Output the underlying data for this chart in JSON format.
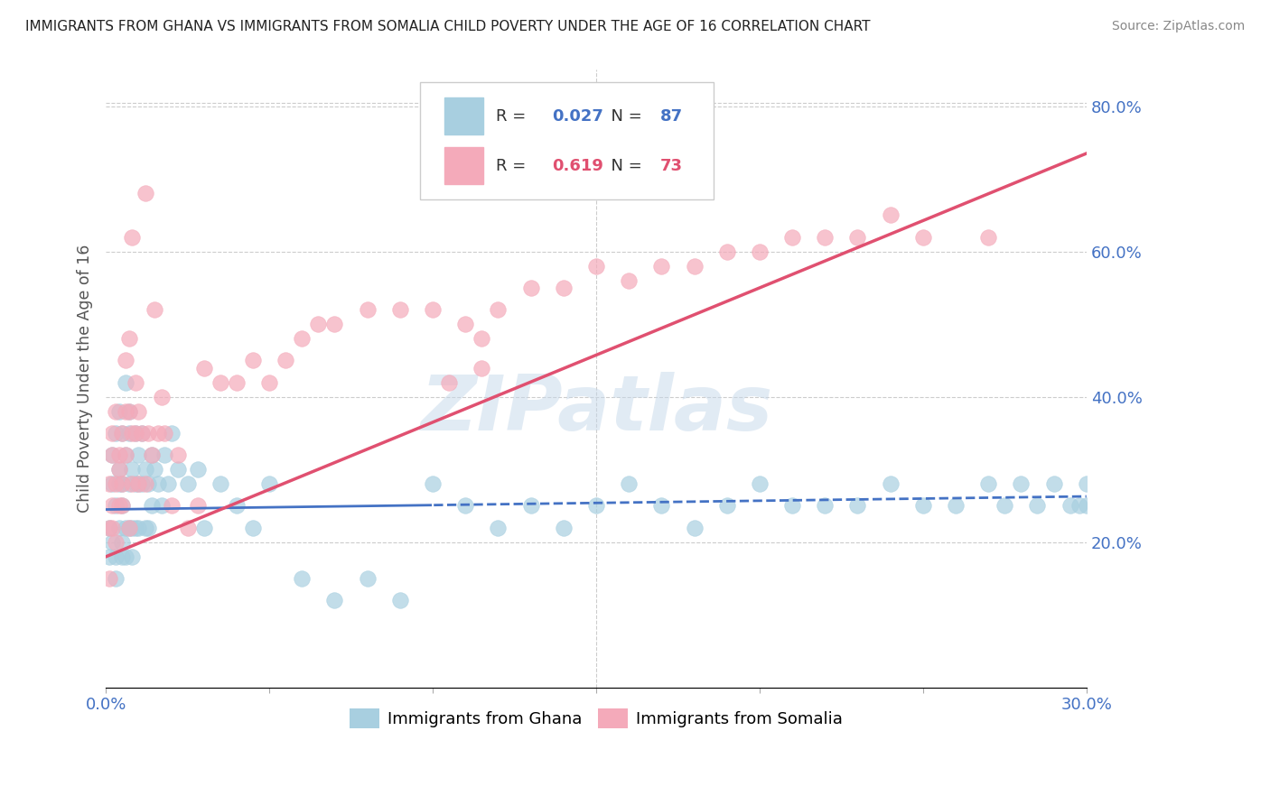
{
  "title": "IMMIGRANTS FROM GHANA VS IMMIGRANTS FROM SOMALIA CHILD POVERTY UNDER THE AGE OF 16 CORRELATION CHART",
  "source": "Source: ZipAtlas.com",
  "ylabel": "Child Poverty Under the Age of 16",
  "xmin": 0.0,
  "xmax": 0.3,
  "ymin": 0.0,
  "ymax": 0.85,
  "yticks": [
    0.2,
    0.4,
    0.6,
    0.8
  ],
  "ytick_labels": [
    "20.0%",
    "40.0%",
    "60.0%",
    "80.0%"
  ],
  "xticks": [
    0.0,
    0.05,
    0.1,
    0.15,
    0.2,
    0.25,
    0.3
  ],
  "xtick_labels": [
    "0.0%",
    "",
    "",
    "",
    "",
    "",
    "30.0%"
  ],
  "ghana_color": "#a8cfe0",
  "somalia_color": "#f4aaba",
  "ghana_line_color": "#4472c4",
  "somalia_line_color": "#e05070",
  "ghana_R": 0.027,
  "ghana_N": 87,
  "somalia_R": 0.619,
  "somalia_N": 73,
  "ghana_label": "Immigrants from Ghana",
  "somalia_label": "Immigrants from Somalia",
  "watermark": "ZIPatlas",
  "background_color": "#ffffff",
  "grid_color": "#cccccc",
  "axis_color": "#4472c4",
  "ghana_line_intercept": 0.245,
  "ghana_line_slope": 0.06,
  "somalia_line_intercept": 0.18,
  "somalia_line_slope": 1.85,
  "ghana_scatter_x": [
    0.001,
    0.001,
    0.002,
    0.002,
    0.002,
    0.003,
    0.003,
    0.003,
    0.003,
    0.004,
    0.004,
    0.004,
    0.004,
    0.005,
    0.005,
    0.005,
    0.005,
    0.005,
    0.006,
    0.006,
    0.006,
    0.006,
    0.007,
    0.007,
    0.007,
    0.007,
    0.008,
    0.008,
    0.008,
    0.009,
    0.009,
    0.009,
    0.01,
    0.01,
    0.01,
    0.011,
    0.011,
    0.012,
    0.012,
    0.013,
    0.013,
    0.014,
    0.014,
    0.015,
    0.016,
    0.017,
    0.018,
    0.019,
    0.02,
    0.022,
    0.025,
    0.028,
    0.03,
    0.035,
    0.04,
    0.045,
    0.05,
    0.06,
    0.07,
    0.08,
    0.09,
    0.1,
    0.11,
    0.12,
    0.13,
    0.14,
    0.15,
    0.16,
    0.17,
    0.18,
    0.19,
    0.2,
    0.21,
    0.22,
    0.23,
    0.24,
    0.25,
    0.26,
    0.27,
    0.275,
    0.28,
    0.285,
    0.29,
    0.295,
    0.298,
    0.3,
    0.3
  ],
  "ghana_scatter_y": [
    0.22,
    0.18,
    0.28,
    0.32,
    0.2,
    0.25,
    0.35,
    0.18,
    0.15,
    0.3,
    0.22,
    0.38,
    0.28,
    0.2,
    0.35,
    0.25,
    0.18,
    0.28,
    0.42,
    0.32,
    0.22,
    0.18,
    0.38,
    0.28,
    0.22,
    0.35,
    0.3,
    0.22,
    0.18,
    0.35,
    0.28,
    0.22,
    0.32,
    0.28,
    0.22,
    0.35,
    0.28,
    0.3,
    0.22,
    0.28,
    0.22,
    0.32,
    0.25,
    0.3,
    0.28,
    0.25,
    0.32,
    0.28,
    0.35,
    0.3,
    0.28,
    0.3,
    0.22,
    0.28,
    0.25,
    0.22,
    0.28,
    0.15,
    0.12,
    0.15,
    0.12,
    0.28,
    0.25,
    0.22,
    0.25,
    0.22,
    0.25,
    0.28,
    0.25,
    0.22,
    0.25,
    0.28,
    0.25,
    0.25,
    0.25,
    0.28,
    0.25,
    0.25,
    0.28,
    0.25,
    0.28,
    0.25,
    0.28,
    0.25,
    0.25,
    0.28,
    0.25
  ],
  "somalia_scatter_x": [
    0.001,
    0.001,
    0.002,
    0.002,
    0.002,
    0.003,
    0.003,
    0.004,
    0.004,
    0.005,
    0.005,
    0.006,
    0.006,
    0.007,
    0.007,
    0.008,
    0.008,
    0.009,
    0.009,
    0.01,
    0.01,
    0.011,
    0.012,
    0.013,
    0.014,
    0.015,
    0.016,
    0.017,
    0.018,
    0.02,
    0.022,
    0.025,
    0.028,
    0.03,
    0.035,
    0.04,
    0.045,
    0.05,
    0.055,
    0.06,
    0.065,
    0.07,
    0.08,
    0.09,
    0.1,
    0.11,
    0.12,
    0.13,
    0.14,
    0.15,
    0.16,
    0.17,
    0.18,
    0.19,
    0.2,
    0.21,
    0.22,
    0.23,
    0.24,
    0.25,
    0.115,
    0.115,
    0.27,
    0.105,
    0.012,
    0.008,
    0.007,
    0.006,
    0.005,
    0.004,
    0.003,
    0.002,
    0.001
  ],
  "somalia_scatter_y": [
    0.22,
    0.28,
    0.32,
    0.25,
    0.35,
    0.28,
    0.38,
    0.3,
    0.25,
    0.35,
    0.28,
    0.45,
    0.32,
    0.38,
    0.22,
    0.35,
    0.28,
    0.42,
    0.35,
    0.28,
    0.38,
    0.35,
    0.28,
    0.35,
    0.32,
    0.52,
    0.35,
    0.4,
    0.35,
    0.25,
    0.32,
    0.22,
    0.25,
    0.44,
    0.42,
    0.42,
    0.45,
    0.42,
    0.45,
    0.48,
    0.5,
    0.5,
    0.52,
    0.52,
    0.52,
    0.5,
    0.52,
    0.55,
    0.55,
    0.58,
    0.56,
    0.58,
    0.58,
    0.6,
    0.6,
    0.62,
    0.62,
    0.62,
    0.65,
    0.62,
    0.48,
    0.44,
    0.62,
    0.42,
    0.68,
    0.62,
    0.48,
    0.38,
    0.25,
    0.32,
    0.2,
    0.22,
    0.15
  ]
}
